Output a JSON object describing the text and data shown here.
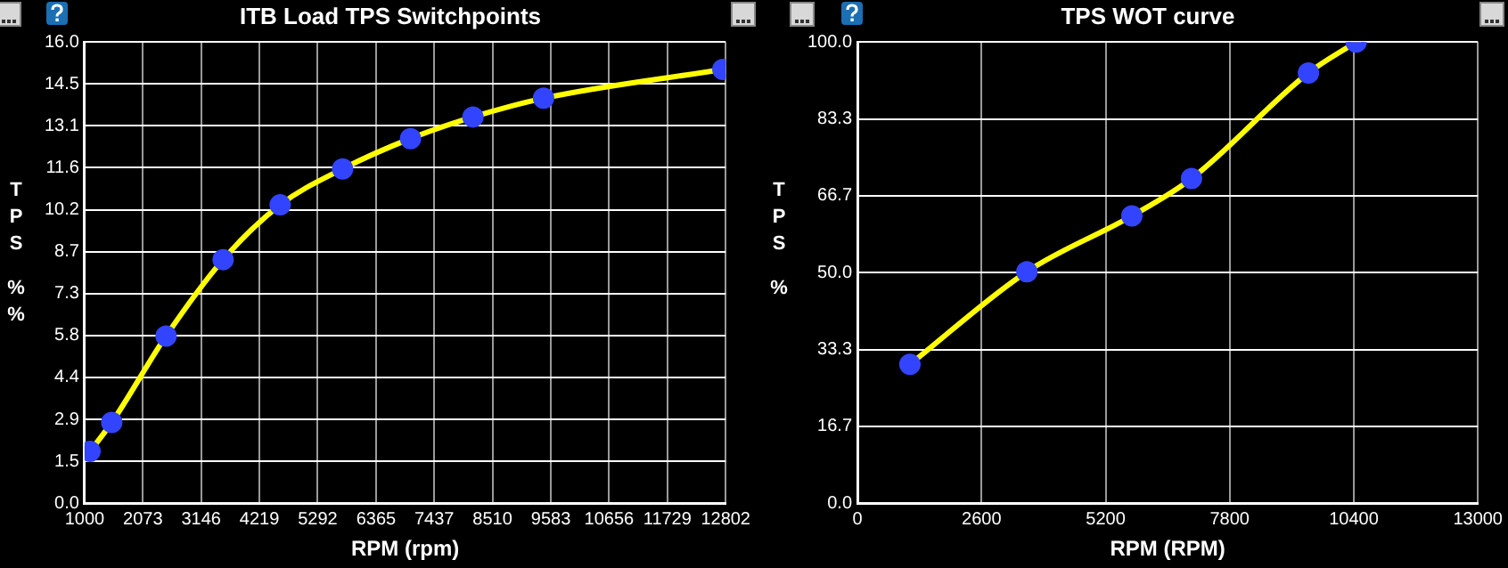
{
  "chart_data": [
    {
      "type": "line",
      "title": "ITB Load TPS Switchpoints",
      "xlabel": "RPM (rpm)",
      "ylabel": "TPS %%",
      "x": [
        1100,
        1500,
        2500,
        3550,
        4600,
        5750,
        7000,
        8150,
        9450,
        12750
      ],
      "series": [
        {
          "color": "#ffff00",
          "values": [
            1.8,
            2.8,
            5.8,
            8.45,
            10.35,
            11.6,
            12.65,
            13.4,
            14.05,
            15.05
          ]
        }
      ],
      "xlim": [
        1000,
        12802
      ],
      "xticks": [
        1000,
        2073,
        3146,
        4219,
        5292,
        6365,
        7437,
        8510,
        9583,
        10656,
        11729,
        12802
      ],
      "ylim": [
        0,
        16
      ],
      "yticks": [
        {
          "value": 0,
          "label": "0.0"
        },
        {
          "value": 1.4545,
          "label": "1.5"
        },
        {
          "value": 2.9091,
          "label": "2.9"
        },
        {
          "value": 4.3636,
          "label": "4.4"
        },
        {
          "value": 5.8182,
          "label": "5.8"
        },
        {
          "value": 7.2727,
          "label": "7.3"
        },
        {
          "value": 8.7273,
          "label": "8.7"
        },
        {
          "value": 10.1818,
          "label": "10.2"
        },
        {
          "value": 11.6364,
          "label": "11.6"
        },
        {
          "value": 13.0909,
          "label": "13.1"
        },
        {
          "value": 14.5455,
          "label": "14.5"
        },
        {
          "value": 16,
          "label": "16.0"
        }
      ],
      "grid": true,
      "legend": false,
      "marker": "circle",
      "line_style": "solid"
    },
    {
      "type": "line",
      "title": "TPS WOT curve",
      "xlabel": "RPM (RPM)",
      "ylabel": "TPS %",
      "x": [
        1100,
        3550,
        5750,
        7000,
        9450,
        10450
      ],
      "series": [
        {
          "color": "#ffff00",
          "values": [
            30.1,
            50.2,
            62.3,
            70.4,
            93.3,
            100
          ]
        }
      ],
      "xlim": [
        0,
        13000
      ],
      "xticks": [
        0,
        2600,
        5200,
        7800,
        10400,
        13000
      ],
      "ylim": [
        0,
        100
      ],
      "yticks": [
        {
          "value": 0,
          "label": "0.0"
        },
        {
          "value": 16.6667,
          "label": "16.7"
        },
        {
          "value": 33.3333,
          "label": "33.3"
        },
        {
          "value": 50,
          "label": "50.0"
        },
        {
          "value": 66.6667,
          "label": "66.7"
        },
        {
          "value": 83.3333,
          "label": "83.3"
        },
        {
          "value": 100,
          "label": "100.0"
        }
      ],
      "grid": true,
      "legend": false,
      "marker": "circle",
      "line_style": "solid"
    }
  ]
}
